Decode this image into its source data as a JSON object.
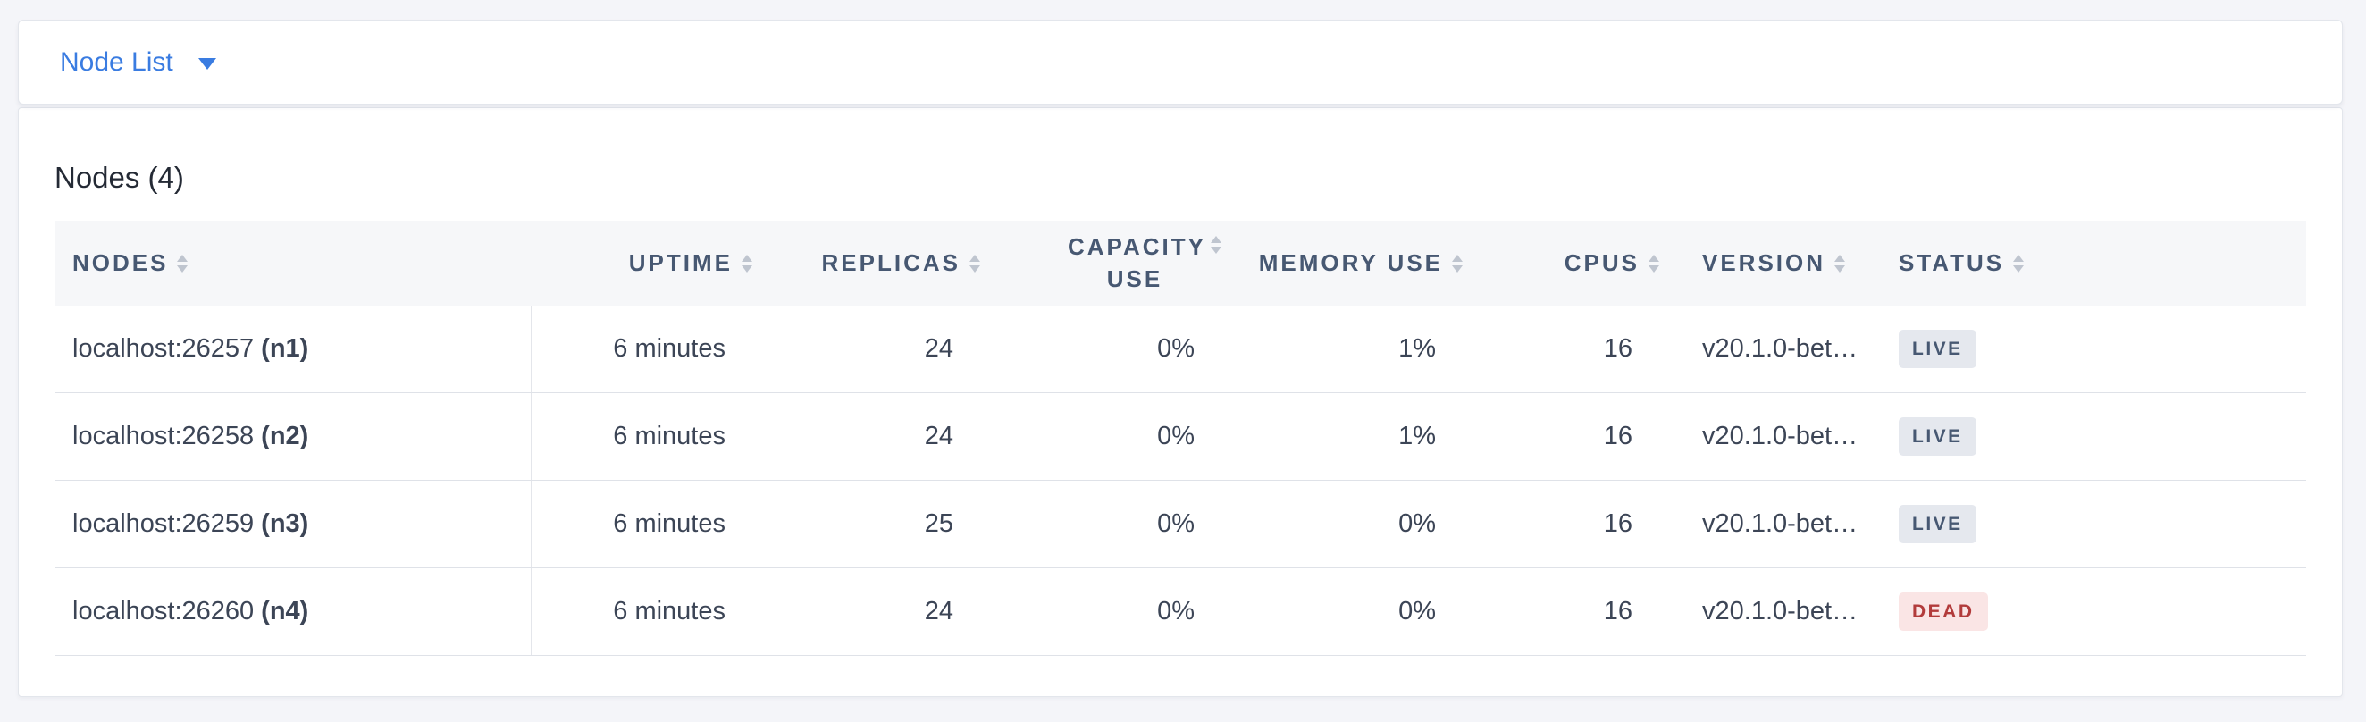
{
  "topbar": {
    "dropdown_label": "Node List"
  },
  "main": {
    "title": "Nodes (4)"
  },
  "table": {
    "columns": [
      {
        "key": "nodes",
        "label": "NODES",
        "align": "left"
      },
      {
        "key": "uptime",
        "label": "UPTIME",
        "align": "right"
      },
      {
        "key": "replicas",
        "label": "REPLICAS",
        "align": "right"
      },
      {
        "key": "capacity",
        "label": "CAPACITY USE",
        "align": "right"
      },
      {
        "key": "memory",
        "label": "MEMORY USE",
        "align": "right"
      },
      {
        "key": "cpus",
        "label": "CPUS",
        "align": "right"
      },
      {
        "key": "version",
        "label": "VERSION",
        "align": "left"
      },
      {
        "key": "status",
        "label": "STATUS",
        "align": "left"
      }
    ],
    "rows": [
      {
        "node_address": "localhost:26257",
        "node_id": "(n1)",
        "uptime": "6 minutes",
        "replicas": "24",
        "capacity_use": "0%",
        "memory_use": "1%",
        "cpus": "16",
        "version": "v20.1.0-bet…",
        "status": "LIVE"
      },
      {
        "node_address": "localhost:26258",
        "node_id": "(n2)",
        "uptime": "6 minutes",
        "replicas": "24",
        "capacity_use": "0%",
        "memory_use": "1%",
        "cpus": "16",
        "version": "v20.1.0-bet…",
        "status": "LIVE"
      },
      {
        "node_address": "localhost:26259",
        "node_id": "(n3)",
        "uptime": "6 minutes",
        "replicas": "25",
        "capacity_use": "0%",
        "memory_use": "0%",
        "cpus": "16",
        "version": "v20.1.0-bet…",
        "status": "LIVE"
      },
      {
        "node_address": "localhost:26260",
        "node_id": "(n4)",
        "uptime": "6 minutes",
        "replicas": "24",
        "capacity_use": "0%",
        "memory_use": "0%",
        "cpus": "16",
        "version": "v20.1.0-bet…",
        "status": "DEAD"
      }
    ]
  },
  "colors": {
    "link_blue": "#3A7CE1",
    "header_text": "#475872",
    "cell_text": "#3C4556",
    "live_badge_bg": "#E5E8EE",
    "live_badge_text": "#475872",
    "dead_badge_bg": "#FAE5E5",
    "dead_badge_text": "#B23B3B",
    "page_bg": "#F4F5F9",
    "header_row_bg": "#F6F7F9"
  }
}
